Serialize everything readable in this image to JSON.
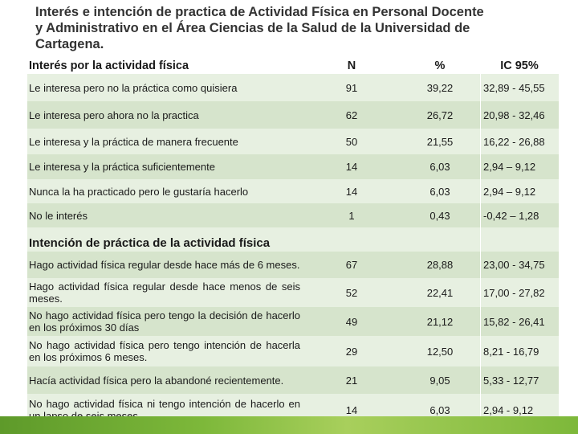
{
  "title": "Interés e intención de practica de Actividad Física en Personal Docente\ny Administrativo en el Área Ciencias de la Salud de la Universidad de\nCartagena.",
  "header": {
    "label": "Interés por la actividad física",
    "n": "N",
    "pct": "%",
    "ci": "IC 95%"
  },
  "interest_rows": [
    {
      "label": "Le interesa pero no la práctica como quisiera",
      "n": "91",
      "pct": "39,22",
      "ci": "32,89 - 45,55"
    },
    {
      "label": "Le interesa pero ahora no la practica",
      "n": "62",
      "pct": "26,72",
      "ci": "20,98 - 32,46"
    },
    {
      "label": "Le interesa y la práctica de manera frecuente",
      "n": "50",
      "pct": "21,55",
      "ci": "16,22 - 26,88"
    },
    {
      "label": "Le interesa y la práctica suficientemente",
      "n": "14",
      "pct": "6,03",
      "ci": "2,94 – 9,12"
    },
    {
      "label": "Nunca la ha practicado pero le gustaría hacerlo",
      "n": "14",
      "pct": "6,03",
      "ci": "2,94 – 9,12"
    },
    {
      "label": "No le interés",
      "n": "1",
      "pct": "0,43",
      "ci": "-0,42 – 1,28"
    }
  ],
  "section2_title": "Intención de práctica de la actividad física",
  "intention_rows": [
    {
      "label": "Hago actividad física regular desde hace más de 6 meses.",
      "n": "67",
      "pct": "28,88",
      "ci": "23,00 - 34,75"
    },
    {
      "label": "Hago actividad física regular desde hace menos de seis meses.",
      "n": "52",
      "pct": "22,41",
      "ci": "17,00 - 27,82"
    },
    {
      "label": "No hago actividad física pero tengo la decisión de hacerlo en los próximos 30 días",
      "n": "49",
      "pct": "21,12",
      "ci": "15,82 - 26,41"
    },
    {
      "label": "No hago actividad física pero tengo intención de hacerla en los próximos 6 meses.",
      "n": "29",
      "pct": "12,50",
      "ci": "8,21 - 16,79"
    },
    {
      "label": "Hacía actividad física pero la abandoné recientemente.",
      "n": "21",
      "pct": "9,05",
      "ci": "5,33 - 12,77"
    },
    {
      "label": "No hago actividad física ni tengo intención de hacerlo en un lapso de seis meses.",
      "n": "14",
      "pct": "6,03",
      "ci": "2,94 - 9,12"
    }
  ],
  "colors": {
    "row_light": "#e7f0e1",
    "row_dark": "#d6e4cc",
    "accent_green": "#7db83a"
  }
}
